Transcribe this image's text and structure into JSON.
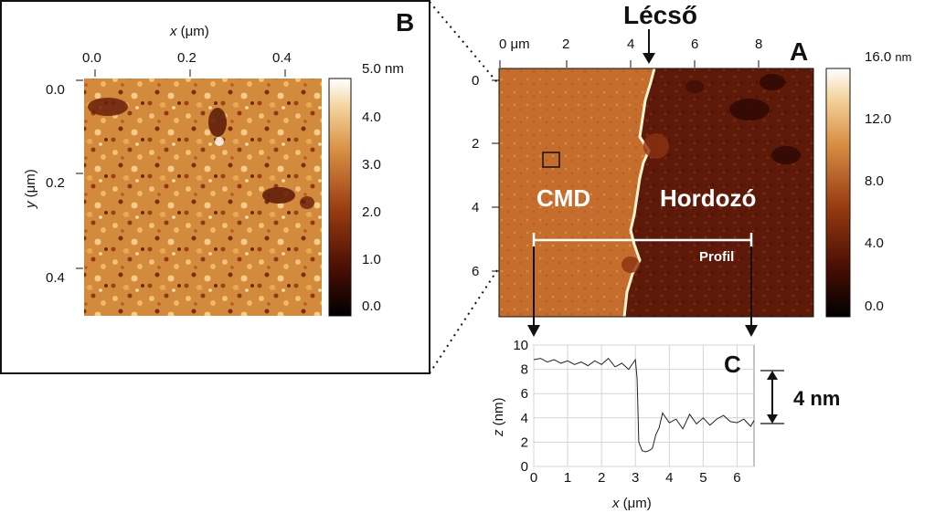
{
  "colors": {
    "frame": "#111111",
    "substrate": "#5a1808",
    "cmd": "#c9722e",
    "edge": "#fff3d0",
    "profile_line": "#ffffff"
  },
  "panel_b": {
    "letter": "B",
    "x_title_var": "x",
    "x_title_unit": "(μm)",
    "y_title_var": "y",
    "y_title_unit": "(μm)",
    "x_ticks": [
      "0.0",
      "0.2",
      "0.4"
    ],
    "y_ticks": [
      "0.0",
      "0.2",
      "0.4"
    ],
    "colorbar_ticks": [
      "5.0 nm",
      "4.0",
      "3.0",
      "2.0",
      "1.0",
      "0.0"
    ]
  },
  "panel_a": {
    "letter": "A",
    "top_ticks": [
      "0 μm",
      "2",
      "4",
      "6",
      "8"
    ],
    "left_ticks": [
      "0",
      "2",
      "4",
      "6"
    ],
    "colorbar_top": "16.0",
    "colorbar_top_unit": "nm",
    "colorbar_ticks": [
      "12.0",
      "8.0",
      "4.0",
      "0.0"
    ],
    "step_label": "Lécső",
    "region_left": "CMD",
    "region_right": "Hordozó",
    "profile_label": "Profil"
  },
  "chart_data": {
    "type": "line",
    "panel": "C",
    "xlabel_var": "x",
    "xlabel_unit": "(μm)",
    "ylabel_var": "z",
    "ylabel_unit": "(nm)",
    "xlim": [
      0,
      6.5
    ],
    "ylim": [
      0,
      10
    ],
    "x_ticks": [
      "0",
      "1",
      "2",
      "3",
      "4",
      "5",
      "6"
    ],
    "y_ticks": [
      "0",
      "2",
      "4",
      "6",
      "8",
      "10"
    ],
    "annotation": "4 nm",
    "x": [
      0,
      0.2,
      0.4,
      0.6,
      0.8,
      1.0,
      1.2,
      1.4,
      1.6,
      1.8,
      2.0,
      2.2,
      2.4,
      2.6,
      2.8,
      3.0,
      3.05,
      3.1,
      3.2,
      3.3,
      3.4,
      3.5,
      3.6,
      3.7,
      3.8,
      4.0,
      4.2,
      4.4,
      4.6,
      4.8,
      5.0,
      5.2,
      5.4,
      5.6,
      5.8,
      6.0,
      6.2,
      6.4,
      6.5
    ],
    "y": [
      8.8,
      8.9,
      8.6,
      8.8,
      8.5,
      8.7,
      8.4,
      8.6,
      8.3,
      8.7,
      8.4,
      8.9,
      8.2,
      8.5,
      8.0,
      8.8,
      7.2,
      2.0,
      1.3,
      1.2,
      1.3,
      1.5,
      2.6,
      3.2,
      4.4,
      3.6,
      3.9,
      3.1,
      4.3,
      3.5,
      4.0,
      3.4,
      3.9,
      4.2,
      3.7,
      3.6,
      3.9,
      3.3,
      3.8
    ]
  }
}
